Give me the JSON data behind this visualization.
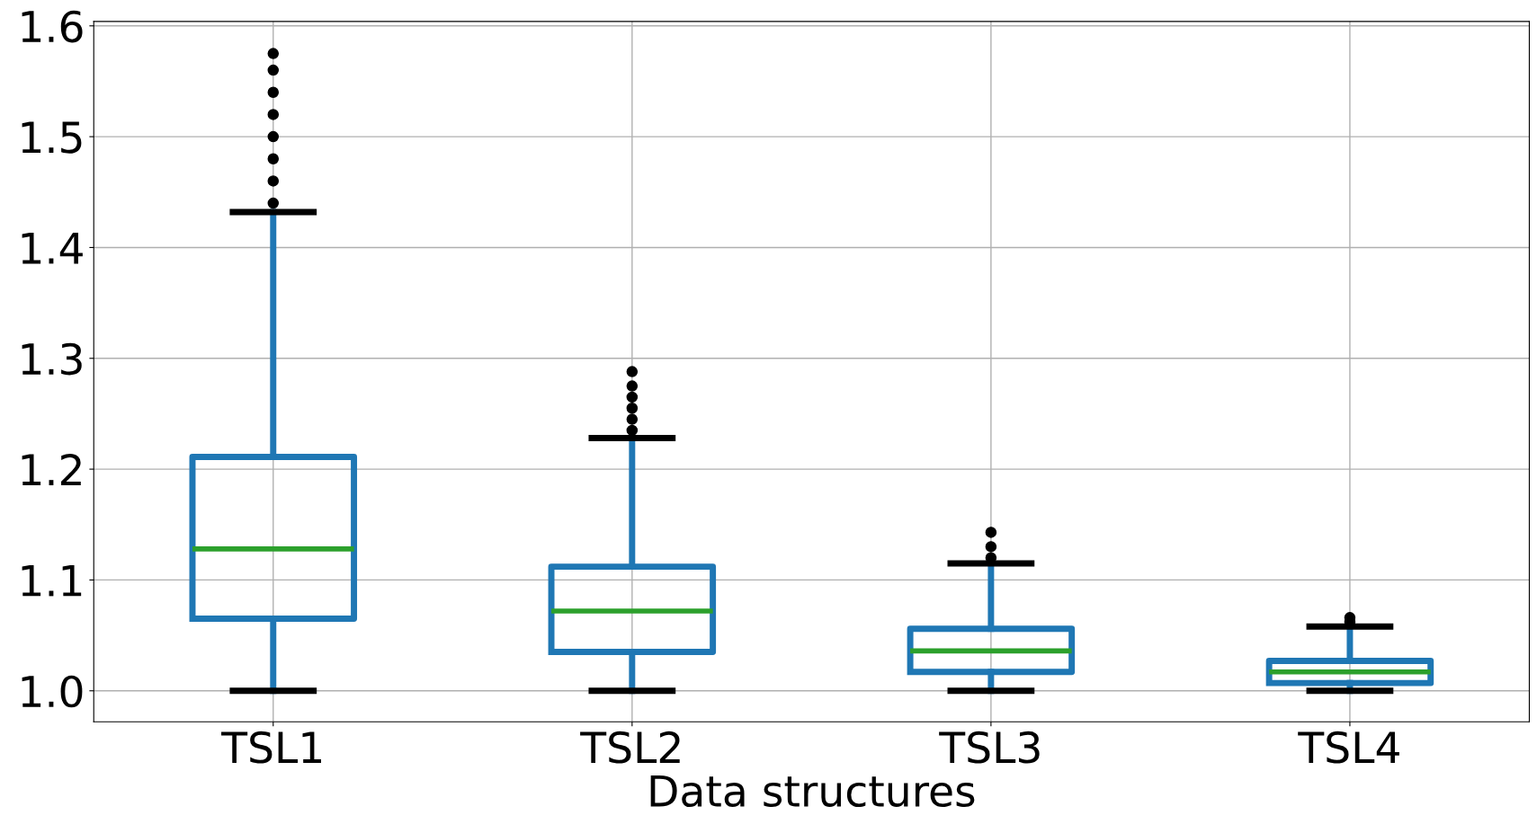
{
  "chart_data": {
    "type": "box",
    "xlabel": "Data structures",
    "categories": [
      "TSL1",
      "TSL2",
      "TSL3",
      "TSL4"
    ],
    "series": [
      {
        "color": "#1f77b4",
        "boxes": [
          {
            "low": 1.0,
            "q1": 1.065,
            "median": 1.128,
            "q3": 1.211,
            "high": 1.432,
            "outliers": [
              1.44,
              1.46,
              1.48,
              1.5,
              1.52,
              1.54,
              1.56,
              1.575
            ]
          },
          {
            "low": 1.0,
            "q1": 1.035,
            "median": 1.072,
            "q3": 1.112,
            "high": 1.228,
            "outliers": [
              1.235,
              1.245,
              1.255,
              1.265,
              1.275,
              1.288
            ]
          },
          {
            "low": 1.0,
            "q1": 1.017,
            "median": 1.036,
            "q3": 1.056,
            "high": 1.115,
            "outliers": [
              1.12,
              1.13,
              1.143
            ]
          },
          {
            "low": 1.0,
            "q1": 1.007,
            "median": 1.017,
            "q3": 1.027,
            "high": 1.058,
            "outliers": [
              1.062,
              1.066
            ]
          }
        ]
      }
    ],
    "ylim": [
      0.972,
      1.604
    ],
    "yticks": [
      {
        "value": 1.0,
        "label": "1.0"
      },
      1.1,
      1.2,
      1.3,
      1.4,
      1.5,
      1.6
    ],
    "grid": true
  }
}
